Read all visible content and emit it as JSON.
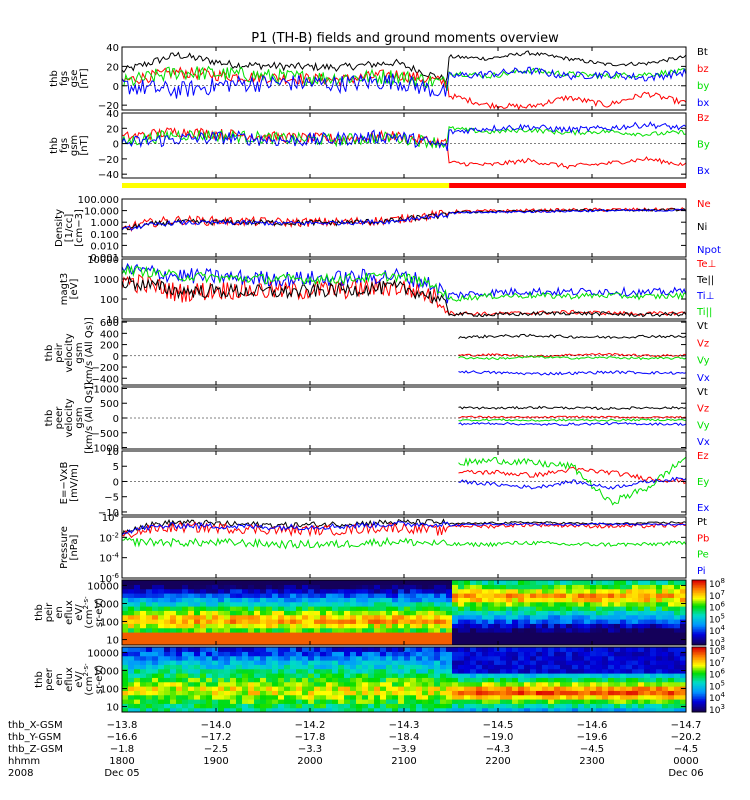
{
  "title": "P1 (TH-B) fields and ground moments overview",
  "colors": {
    "black": "#000000",
    "red": "#ff0000",
    "green": "#00e000",
    "blue": "#0000ff",
    "yellow": "#ffff00"
  },
  "status_bar": {
    "segments": [
      {
        "from": 1800,
        "to": 2148,
        "color": "#ffff00"
      },
      {
        "from": 2148,
        "to": 2400,
        "color": "#ff0000"
      }
    ]
  },
  "chart_data": [
    {
      "type": "line",
      "id": "fgs_gse",
      "ylabel_lines": [
        "thb",
        "fgs",
        "gse",
        "[nT]"
      ],
      "ylim": [
        -25,
        40
      ],
      "yticks": [
        {
          "v": 40,
          "t": "40"
        },
        {
          "v": 20,
          "t": "20"
        },
        {
          "v": 0,
          "t": "0"
        },
        {
          "v": -20,
          "t": "−20"
        }
      ],
      "series": [
        {
          "name": "Bt",
          "color": "#000000",
          "start": 2148,
          "pre": [
            15,
            32,
            22,
            20,
            19,
            24,
            5
          ],
          "post": [
            30,
            28,
            34,
            28,
            22,
            23,
            30
          ],
          "noise_pre": 4,
          "noise_post": 2
        },
        {
          "name": "bz",
          "color": "#ff0000",
          "start": 2148,
          "pre": [
            5,
            14,
            10,
            8,
            6,
            12,
            3
          ],
          "post": [
            -10,
            -20,
            -22,
            -12,
            -20,
            -8,
            -18
          ],
          "noise_pre": 6,
          "noise_post": 3
        },
        {
          "name": "by",
          "color": "#00e000",
          "start": 2148,
          "pre": [
            3,
            14,
            12,
            9,
            8,
            10,
            2
          ],
          "post": [
            14,
            10,
            16,
            12,
            10,
            12,
            15
          ],
          "noise_pre": 8,
          "noise_post": 3
        },
        {
          "name": "bx",
          "color": "#0000ff",
          "start": 2148,
          "pre": [
            0,
            -5,
            2,
            3,
            2,
            5,
            -8
          ],
          "post": [
            10,
            12,
            16,
            10,
            12,
            8,
            14
          ],
          "noise_pre": 9,
          "noise_post": 4
        }
      ]
    },
    {
      "type": "line",
      "id": "fgs_gsm",
      "ylabel_lines": [
        "thb",
        "fgs",
        "gsm",
        "[nT]"
      ],
      "ylim": [
        -45,
        40
      ],
      "yticks": [
        {
          "v": 40,
          "t": "40"
        },
        {
          "v": 20,
          "t": "20"
        },
        {
          "v": 0,
          "t": "0"
        },
        {
          "v": -20,
          "t": "−20"
        },
        {
          "v": -40,
          "t": "−40"
        }
      ],
      "series": [
        {
          "name": "Bz",
          "color": "#ff0000",
          "start": 2148,
          "pre": [
            8,
            16,
            12,
            8,
            6,
            10,
            0
          ],
          "post": [
            -25,
            -28,
            -22,
            -30,
            -26,
            -20,
            -28
          ],
          "noise_pre": 7,
          "noise_post": 3
        },
        {
          "name": "By",
          "color": "#00e000",
          "start": 2148,
          "pre": [
            2,
            12,
            10,
            6,
            5,
            8,
            0
          ],
          "post": [
            20,
            15,
            18,
            14,
            16,
            12,
            15
          ],
          "noise_pre": 8,
          "noise_post": 3
        },
        {
          "name": "Bx",
          "color": "#0000ff",
          "start": 2148,
          "pre": [
            0,
            6,
            8,
            4,
            6,
            10,
            -5
          ],
          "post": [
            15,
            20,
            22,
            18,
            20,
            25,
            20
          ],
          "noise_pre": 9,
          "noise_post": 4
        }
      ]
    },
    {
      "type": "line",
      "id": "density",
      "log": true,
      "ylabel_lines": [
        "Density",
        "[1/cc]",
        "[cm−3]"
      ],
      "ylim": [
        0.001,
        100
      ],
      "yticks": [
        {
          "v": 100,
          "t": "100.000"
        },
        {
          "v": 10,
          "t": "10.000"
        },
        {
          "v": 1,
          "t": "1.000"
        },
        {
          "v": 0.1,
          "t": "0.100"
        },
        {
          "v": 0.01,
          "t": "0.010"
        },
        {
          "v": 0.001,
          "t": "0.001"
        }
      ],
      "series": [
        {
          "name": "Ne",
          "color": "#ff0000",
          "start": 2148,
          "pre": [
            0.2,
            1.5,
            1.2,
            1.0,
            1.0,
            1.5,
            5
          ],
          "post": [
            8,
            9,
            10,
            11,
            12,
            12,
            13
          ],
          "noise_pre": 0.4,
          "noise_post": 0.15
        },
        {
          "name": "Ni",
          "color": "#000000",
          "start": 2148,
          "pre": [
            0.2,
            1.0,
            1.0,
            0.9,
            0.9,
            1.3,
            4
          ],
          "post": [
            7,
            8,
            9,
            10,
            11,
            11,
            12
          ],
          "noise_pre": 0.25,
          "noise_post": 0.1
        },
        {
          "name": "Npot",
          "color": "#0000ff",
          "start": 2148,
          "pre": [
            0.2,
            0.9,
            0.9,
            0.8,
            0.9,
            1.2,
            4
          ],
          "post": [
            6,
            7,
            8,
            9,
            10,
            10,
            11
          ],
          "noise_pre": 0.2,
          "noise_post": 0.1
        }
      ]
    },
    {
      "type": "line",
      "id": "temperature",
      "log": true,
      "ylabel_lines": [
        "magt3",
        "[eV]"
      ],
      "ylim": [
        10,
        10000
      ],
      "yticks": [
        {
          "v": 10000,
          "t": "10000"
        },
        {
          "v": 1000,
          "t": "1000"
        },
        {
          "v": 100,
          "t": "100"
        },
        {
          "v": 10,
          "t": "10"
        }
      ],
      "series": [
        {
          "name": "Te⊥",
          "color": "#ff0000",
          "start": 2148,
          "pre": [
            800,
            200,
            300,
            250,
            300,
            400,
            20
          ],
          "post": [
            20,
            18,
            20,
            22,
            20,
            18,
            20
          ],
          "noise_pre": 0.5,
          "noise_post": 0.1
        },
        {
          "name": "Te||",
          "color": "#000000",
          "start": 2148,
          "pre": [
            700,
            250,
            250,
            220,
            280,
            380,
            18
          ],
          "post": [
            18,
            16,
            18,
            20,
            18,
            16,
            18
          ],
          "noise_pre": 0.35,
          "noise_post": 0.1
        },
        {
          "name": "Ti⊥",
          "color": "#0000ff",
          "start": 2148,
          "pre": [
            3000,
            1500,
            1200,
            1000,
            1100,
            1500,
            60
          ],
          "post": [
            150,
            200,
            250,
            220,
            250,
            200,
            250
          ],
          "noise_pre": 0.4,
          "noise_post": 0.2
        },
        {
          "name": "Ti||",
          "color": "#00e000",
          "start": 2148,
          "pre": [
            3000,
            1400,
            1100,
            1000,
            1000,
            1400,
            60
          ],
          "post": [
            100,
            140,
            150,
            140,
            150,
            130,
            150
          ],
          "noise_pre": 0.25,
          "noise_post": 0.15
        }
      ]
    },
    {
      "type": "line",
      "id": "peir_velocity",
      "ylabel_lines": [
        "thb",
        "peir",
        "velocity",
        "gsm",
        "[km/s (All Qs)]"
      ],
      "ylim": [
        -520,
        620
      ],
      "yticks": [
        {
          "v": 600,
          "t": "600"
        },
        {
          "v": 400,
          "t": "400"
        },
        {
          "v": 200,
          "t": "200"
        },
        {
          "v": 0,
          "t": "0"
        },
        {
          "v": -200,
          "t": "−200"
        },
        {
          "v": -400,
          "t": "−400"
        }
      ],
      "series": [
        {
          "name": "Vt",
          "color": "#000000",
          "start": 2158,
          "post": [
            330,
            350,
            360,
            340,
            330,
            350,
            340
          ],
          "noise_post": 25
        },
        {
          "name": "Vz",
          "color": "#ff0000",
          "start": 2158,
          "post": [
            10,
            20,
            -10,
            20,
            30,
            0,
            10
          ],
          "noise_post": 20
        },
        {
          "name": "Vy",
          "color": "#00e000",
          "start": 2158,
          "post": [
            -30,
            -50,
            -20,
            -40,
            -30,
            -50,
            -40
          ],
          "noise_post": 20
        },
        {
          "name": "Vx",
          "color": "#0000ff",
          "start": 2158,
          "post": [
            -280,
            -300,
            -320,
            -310,
            -290,
            -300,
            -310
          ],
          "noise_post": 25
        }
      ]
    },
    {
      "type": "line",
      "id": "peer_velocity",
      "ylabel_lines": [
        "thb",
        "peer",
        "velocity",
        "gsm",
        "[km/s (All Qs)]"
      ],
      "ylim": [
        -1050,
        1050
      ],
      "yticks": [
        {
          "v": 1000,
          "t": "1000"
        },
        {
          "v": 500,
          "t": "500"
        },
        {
          "v": 0,
          "t": "0"
        },
        {
          "v": -500,
          "t": "−500"
        },
        {
          "v": -1000,
          "t": "−1000"
        }
      ],
      "series": [
        {
          "name": "Vt",
          "color": "#000000",
          "start": 2158,
          "post": [
            350,
            330,
            360,
            340,
            320,
            350,
            340
          ],
          "noise_post": 40
        },
        {
          "name": "Vz",
          "color": "#ff0000",
          "start": 2158,
          "post": [
            40,
            30,
            20,
            40,
            30,
            20,
            30
          ],
          "noise_post": 30
        },
        {
          "name": "Vy",
          "color": "#00e000",
          "start": 2158,
          "post": [
            -80,
            -60,
            -90,
            -70,
            -80,
            -60,
            -70
          ],
          "noise_post": 30
        },
        {
          "name": "Vx",
          "color": "#0000ff",
          "start": 2158,
          "post": [
            -200,
            -180,
            -220,
            -210,
            -190,
            -200,
            -210
          ],
          "noise_post": 40
        }
      ]
    },
    {
      "type": "line",
      "id": "e_field",
      "ylabel_lines": [
        "E=−VxB",
        "[mV/m]"
      ],
      "ylim": [
        -11,
        10
      ],
      "yticks": [
        {
          "v": 10,
          "t": "10"
        },
        {
          "v": 5,
          "t": "5"
        },
        {
          "v": 0,
          "t": "0"
        },
        {
          "v": -5,
          "t": "−5"
        },
        {
          "v": -10,
          "t": "−10"
        }
      ],
      "series": [
        {
          "name": "Ez",
          "color": "#ff0000",
          "start": 2158,
          "post": [
            3,
            3,
            2,
            4,
            3,
            1,
            0
          ],
          "noise_post": 0.8
        },
        {
          "name": "Ey",
          "color": "#00e000",
          "start": 2158,
          "post": [
            6,
            7,
            6,
            5,
            -7,
            -2,
            8
          ],
          "noise_post": 1.2
        },
        {
          "name": "Ex",
          "color": "#0000ff",
          "start": 2158,
          "post": [
            0,
            -1,
            -2,
            0,
            -2,
            0,
            1
          ],
          "noise_post": 0.6
        }
      ]
    },
    {
      "type": "line",
      "id": "pressure",
      "log": true,
      "ylabel_lines": [
        "Pressure",
        "[nPa]"
      ],
      "ylim": [
        1e-06,
        1
      ],
      "yticks": [
        {
          "v": 1,
          "t": "10^0"
        },
        {
          "v": 0.01,
          "t": "10^-2"
        },
        {
          "v": 0.0001,
          "t": "10^-4"
        },
        {
          "v": 1e-06,
          "t": "10^-6"
        }
      ],
      "series": [
        {
          "name": "Pt",
          "color": "#000000",
          "start": 2148,
          "pre": [
            0.02,
            0.3,
            0.2,
            0.15,
            0.2,
            0.3,
            0.3
          ],
          "post": [
            0.2,
            0.25,
            0.3,
            0.25,
            0.2,
            0.25,
            0.3
          ],
          "noise_pre": 0.3,
          "noise_post": 0.1
        },
        {
          "name": "Pb",
          "color": "#ff0000",
          "start": 2148,
          "pre": [
            0.01,
            0.1,
            0.08,
            0.05,
            0.05,
            0.1,
            0.03
          ],
          "post": [
            0.15,
            0.12,
            0.18,
            0.15,
            0.12,
            0.13,
            0.16
          ],
          "noise_pre": 0.5,
          "noise_post": 0.2
        },
        {
          "name": "Pe",
          "color": "#00e000",
          "start": 2148,
          "pre": [
            0.004,
            0.003,
            0.003,
            0.002,
            0.002,
            0.004,
            0.002
          ],
          "post": [
            0.002,
            0.002,
            0.003,
            0.002,
            0.002,
            0.002,
            0.003
          ],
          "noise_pre": 0.4,
          "noise_post": 0.2
        },
        {
          "name": "Pi",
          "color": "#0000ff",
          "start": 2148,
          "pre": [
            0.03,
            0.15,
            0.12,
            0.1,
            0.12,
            0.2,
            0.2
          ],
          "post": [
            0.15,
            0.2,
            0.2,
            0.18,
            0.2,
            0.18,
            0.2
          ],
          "noise_pre": 0.3,
          "noise_post": 0.1
        }
      ]
    },
    {
      "type": "heatmap",
      "id": "peir_spectrogram",
      "ylabel_lines": [
        "thb",
        "peir",
        "en",
        "eflux",
        "eV/",
        "(cm^2-s-",
        "sr-eV)"
      ],
      "ylim": [
        5,
        20000
      ],
      "yticks": [
        {
          "v": 10000,
          "t": "10000"
        },
        {
          "v": 1000,
          "t": "1000"
        },
        {
          "v": 100,
          "t": "100"
        },
        {
          "v": 10,
          "t": "10"
        }
      ],
      "colorbar": {
        "range": [
          1000,
          100000000
        ],
        "labels": [
          "10^8",
          "10^7",
          "10^6",
          "10^5",
          "10^4",
          "10^3"
        ]
      }
    },
    {
      "type": "heatmap",
      "id": "peer_spectrogram",
      "ylabel_lines": [
        "thb",
        "peer",
        "en",
        "eflux",
        "eV/",
        "(cm^2-s-",
        "sr-eV)"
      ],
      "ylim": [
        5,
        20000
      ],
      "yticks": [
        {
          "v": 10000,
          "t": "10000"
        },
        {
          "v": 1000,
          "t": "1000"
        },
        {
          "v": 100,
          "t": "100"
        },
        {
          "v": 10,
          "t": "10"
        }
      ],
      "colorbar": {
        "range": [
          1000,
          100000000
        ],
        "labels": [
          "10^8",
          "10^7",
          "10^6",
          "10^5",
          "10^4",
          "10^3"
        ]
      }
    }
  ],
  "x_axis": {
    "xlim": [
      1800,
      2400
    ],
    "row_labels": [
      "thb_X-GSM",
      "thb_Y-GSM",
      "thb_Z-GSM",
      "hhmm",
      "2008"
    ],
    "ticks": [
      {
        "time": 1800,
        "x_gsm": "−13.8",
        "y_gsm": "−16.6",
        "z_gsm": "−1.8",
        "hhmm": "1800",
        "date": "Dec 05"
      },
      {
        "time": 1900,
        "x_gsm": "−14.0",
        "y_gsm": "−17.2",
        "z_gsm": "−2.5",
        "hhmm": "1900",
        "date": ""
      },
      {
        "time": 2000,
        "x_gsm": "−14.2",
        "y_gsm": "−17.8",
        "z_gsm": "−3.3",
        "hhmm": "2000",
        "date": ""
      },
      {
        "time": 2100,
        "x_gsm": "−14.3",
        "y_gsm": "−18.4",
        "z_gsm": "−3.9",
        "hhmm": "2100",
        "date": ""
      },
      {
        "time": 2200,
        "x_gsm": "−14.5",
        "y_gsm": "−19.0",
        "z_gsm": "−4.3",
        "hhmm": "2200",
        "date": ""
      },
      {
        "time": 2300,
        "x_gsm": "−14.6",
        "y_gsm": "−19.6",
        "z_gsm": "−4.5",
        "hhmm": "2300",
        "date": ""
      },
      {
        "time": 2400,
        "x_gsm": "−14.7",
        "y_gsm": "−20.2",
        "z_gsm": "−4.5",
        "hhmm": "0000",
        "date": "Dec 06"
      }
    ]
  }
}
